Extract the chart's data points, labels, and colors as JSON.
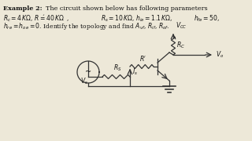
{
  "background_color": "#ede8d8",
  "text_color": "#111111",
  "circuit_color": "#333333",
  "bg_right": "#e8e0cc",
  "line1": "Example 2:  The circuit shown below has following parameters",
  "line2a": "R_c = 4 K\\Omega, R' = 40 K\\Omega",
  "line2b": "R_s = 10 K\\Omega, h_{ie} = 1.1 K\\Omega,",
  "line2c": "h_{fe} = 50,",
  "line3": "h_{re} = h_{oe} = 0. Identify the topology and find A_{vf}, R_{if}, R_{of}."
}
